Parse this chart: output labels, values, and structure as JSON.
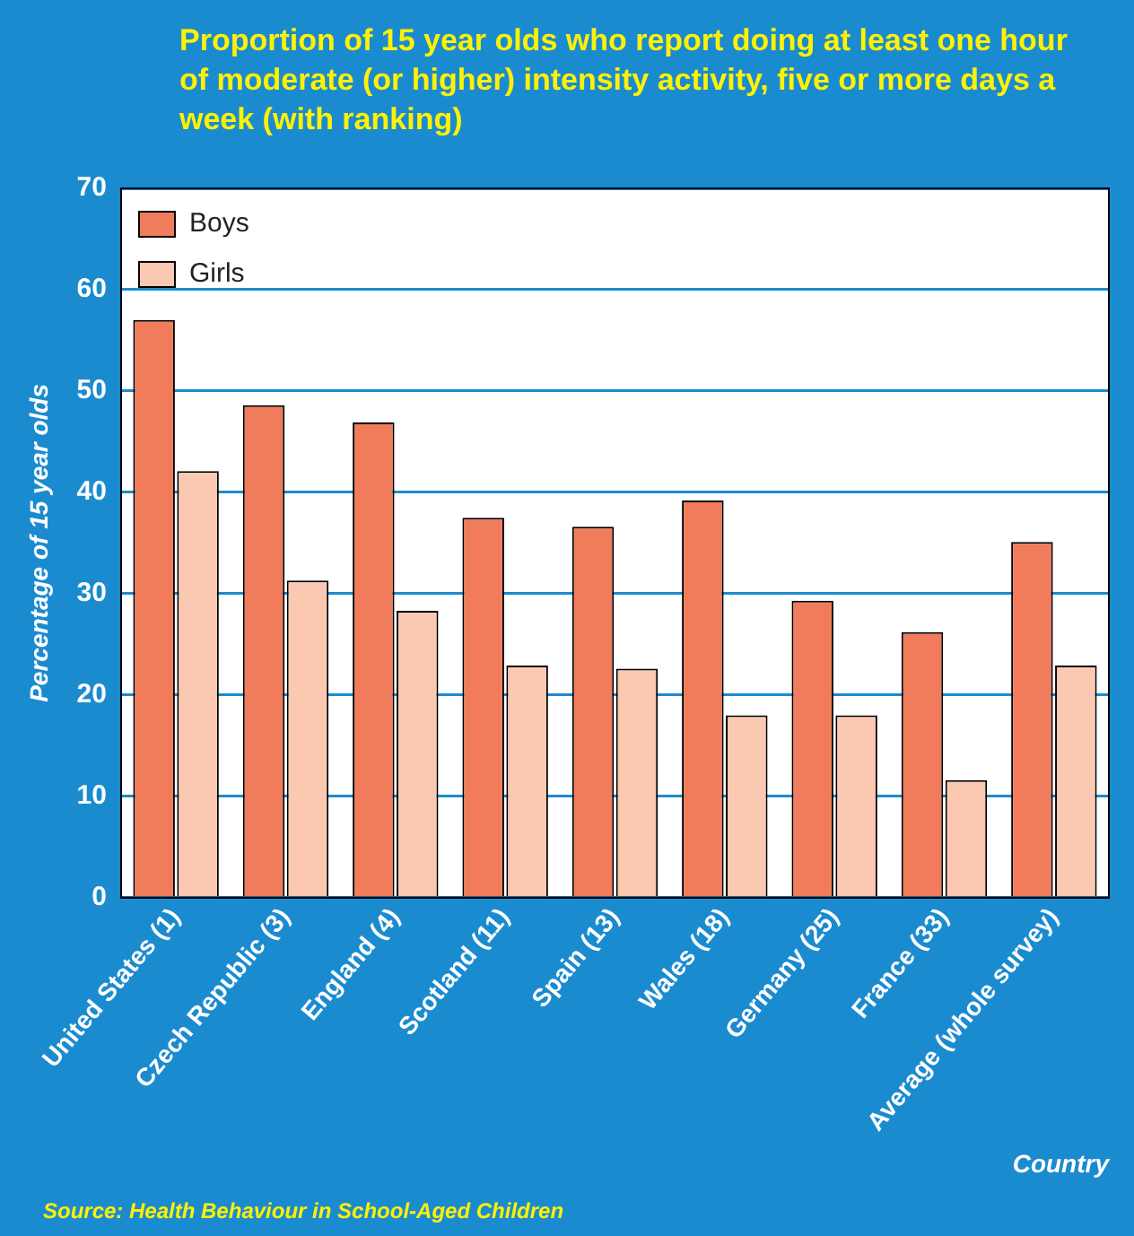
{
  "chart_data": {
    "type": "bar",
    "title": "Proportion of 15 year olds who report doing at least one hour of moderate (or higher) intensity activity, five or more days a week (with ranking)",
    "xlabel": "Country",
    "ylabel": "Percentage of 15 year olds",
    "categories": [
      "United States (1)",
      "Czech Republic (3)",
      "England (4)",
      "Scotland (11)",
      "Spain (13)",
      "Wales (18)",
      "Germany (25)",
      "France (33)",
      "Average (whole survey)"
    ],
    "series": [
      {
        "name": "Boys",
        "color": "#f07c5c",
        "values": [
          57.0,
          48.6,
          46.9,
          37.5,
          36.6,
          39.2,
          29.3,
          26.2,
          35.1
        ]
      },
      {
        "name": "Girls",
        "color": "#fbc9b1",
        "values": [
          42.1,
          31.3,
          28.3,
          22.9,
          22.6,
          18.0,
          18.0,
          11.6,
          22.9
        ]
      }
    ],
    "ylim": [
      0,
      70
    ],
    "yticks": [
      0,
      10,
      20,
      30,
      40,
      50,
      60,
      70
    ],
    "grid": "y",
    "legend": "top left",
    "annotations": [
      "Source: Health Behaviour in School-Aged Children"
    ]
  }
}
